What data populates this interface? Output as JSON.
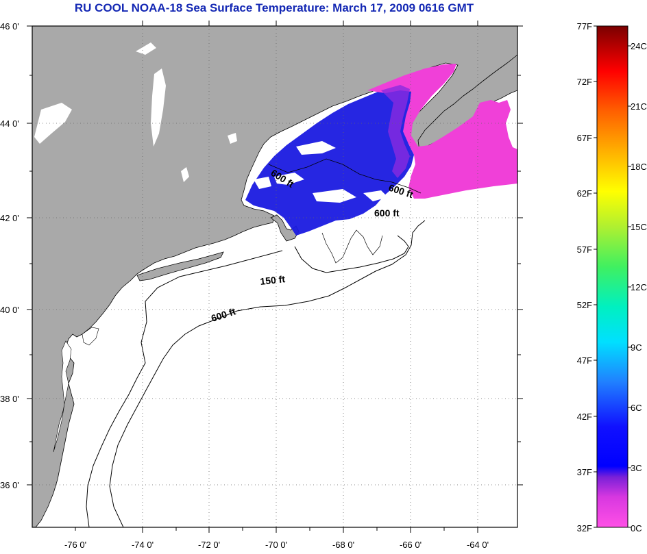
{
  "title": "RU COOL  NOAA-18  Sea Surface Temperature:  March 17, 2009 0616 GMT",
  "map": {
    "lat_labels": [
      "46 0'",
      "44 0'",
      "42 0'",
      "40 0'",
      "38 0'",
      "36 0'"
    ],
    "lon_labels": [
      "-76 0'",
      "-74 0'",
      "-72 0'",
      "-70 0'",
      "-68 0'",
      "-66 0'",
      "-64 0'"
    ],
    "lat_range": [
      35,
      46
    ],
    "lon_range": [
      -77,
      -63
    ],
    "depth_contours": [
      "600 ft",
      "600 ft",
      "600 ft",
      "150 ft",
      "600 ft"
    ],
    "colors": {
      "land": "#a9a9a9",
      "ocean": "#ffffff",
      "cold_blue": "#1a1ae0",
      "magenta": "#f040d8"
    }
  },
  "colorbar": {
    "fahrenheit": [
      "77F",
      "72F",
      "67F",
      "62F",
      "57F",
      "52F",
      "47F",
      "42F",
      "37F",
      "32F"
    ],
    "celsius": [
      "24C",
      "21C",
      "18C",
      "15C",
      "12C",
      "9C",
      "6C",
      "3C",
      "0C"
    ]
  }
}
